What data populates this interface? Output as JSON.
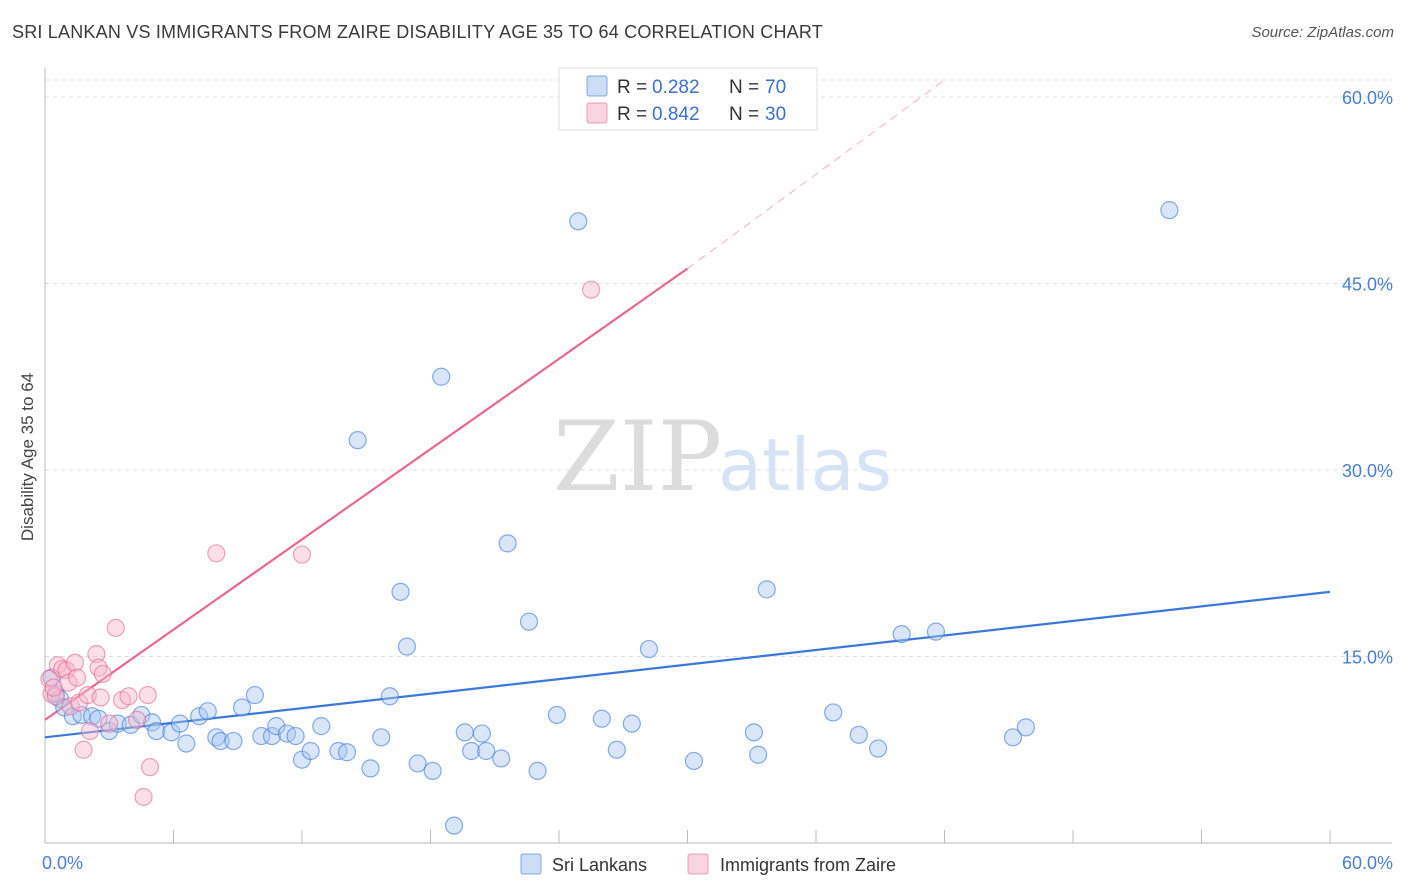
{
  "header": {
    "title": "SRI LANKAN VS IMMIGRANTS FROM ZAIRE DISABILITY AGE 35 TO 64 CORRELATION CHART",
    "source": "Source: ZipAtlas.com"
  },
  "colors": {
    "blue": "#3b78d8",
    "blue_fill": "#a9c8f0",
    "pink": "#e86890",
    "pink_fill": "#f7b8cc",
    "grid": "#dddddd"
  },
  "chart_data": {
    "type": "scatter",
    "title": "SRI LANKAN VS IMMIGRANTS FROM ZAIRE DISABILITY AGE 35 TO 64 CORRELATION CHART",
    "xlabel": "",
    "ylabel": "Disability Age 35 to 64",
    "xlim": [
      0,
      60
    ],
    "ylim": [
      0,
      60
    ],
    "x_tick_labels": [
      "0.0%",
      "60.0%"
    ],
    "y_ticks": [
      15,
      30,
      45,
      60
    ],
    "y_tick_labels": [
      "15.0%",
      "30.0%",
      "45.0%",
      "60.0%"
    ],
    "grid": true,
    "legend": [
      {
        "r_label": "R =",
        "r_value": "0.282",
        "n_label": "N =",
        "n_value": "70"
      },
      {
        "r_label": "R =",
        "r_value": "0.842",
        "n_label": "N =",
        "n_value": "30"
      }
    ],
    "series": [
      {
        "name": "Sri Lankans",
        "color": "#3b78d8",
        "trend": {
          "x0": 0,
          "y0": 8.5,
          "x1": 60,
          "y1": 20.2
        },
        "points": [
          [
            0.3,
            13.3
          ],
          [
            0.5,
            12.0
          ],
          [
            0.7,
            11.6
          ],
          [
            0.9,
            10.9
          ],
          [
            1.3,
            10.2
          ],
          [
            1.7,
            10.3
          ],
          [
            2.2,
            10.2
          ],
          [
            2.5,
            10.0
          ],
          [
            3.0,
            9.0
          ],
          [
            3.4,
            9.6
          ],
          [
            4.0,
            9.5
          ],
          [
            4.5,
            10.3
          ],
          [
            5.0,
            9.7
          ],
          [
            5.2,
            9.0
          ],
          [
            5.9,
            8.9
          ],
          [
            6.3,
            9.6
          ],
          [
            6.6,
            8.0
          ],
          [
            7.2,
            10.2
          ],
          [
            7.6,
            10.6
          ],
          [
            8.0,
            8.5
          ],
          [
            8.2,
            8.2
          ],
          [
            8.8,
            8.2
          ],
          [
            9.2,
            10.9
          ],
          [
            9.8,
            11.9
          ],
          [
            10.1,
            8.6
          ],
          [
            10.6,
            8.6
          ],
          [
            10.8,
            9.4
          ],
          [
            11.3,
            8.8
          ],
          [
            11.7,
            8.6
          ],
          [
            12.0,
            6.7
          ],
          [
            12.4,
            7.4
          ],
          [
            12.9,
            9.4
          ],
          [
            13.7,
            7.4
          ],
          [
            14.1,
            7.3
          ],
          [
            14.6,
            32.4
          ],
          [
            15.2,
            6.0
          ],
          [
            15.7,
            8.5
          ],
          [
            16.1,
            11.8
          ],
          [
            16.6,
            20.2
          ],
          [
            16.9,
            15.8
          ],
          [
            17.4,
            6.4
          ],
          [
            18.1,
            5.8
          ],
          [
            18.5,
            37.5
          ],
          [
            19.1,
            1.4
          ],
          [
            19.6,
            8.9
          ],
          [
            19.9,
            7.4
          ],
          [
            20.4,
            8.8
          ],
          [
            20.6,
            7.4
          ],
          [
            21.3,
            6.8
          ],
          [
            21.6,
            24.1
          ],
          [
            22.6,
            17.8
          ],
          [
            23.0,
            5.8
          ],
          [
            23.9,
            10.3
          ],
          [
            24.9,
            50.0
          ],
          [
            26.0,
            10.0
          ],
          [
            26.7,
            7.5
          ],
          [
            27.4,
            9.6
          ],
          [
            28.2,
            15.6
          ],
          [
            30.3,
            6.6
          ],
          [
            33.1,
            8.9
          ],
          [
            33.3,
            7.1
          ],
          [
            33.7,
            20.4
          ],
          [
            36.8,
            10.5
          ],
          [
            38.0,
            8.7
          ],
          [
            38.9,
            7.6
          ],
          [
            40.0,
            16.8
          ],
          [
            41.6,
            17.0
          ],
          [
            45.2,
            8.5
          ],
          [
            45.8,
            9.3
          ],
          [
            52.5,
            50.9
          ]
        ]
      },
      {
        "name": "Immigrants from Zaire",
        "color": "#e86890",
        "trend": {
          "x0": 0,
          "y0": 9.9,
          "x1": 30,
          "y1": 46.2,
          "dash_x1": 42,
          "dash_y1": 60.0
        },
        "points": [
          [
            0.2,
            13.2
          ],
          [
            0.3,
            12.0
          ],
          [
            0.5,
            11.8
          ],
          [
            0.6,
            14.3
          ],
          [
            0.8,
            14.0
          ],
          [
            1.0,
            13.9
          ],
          [
            1.1,
            12.9
          ],
          [
            1.2,
            11.0
          ],
          [
            1.4,
            14.5
          ],
          [
            1.6,
            11.3
          ],
          [
            1.8,
            7.5
          ],
          [
            2.0,
            11.9
          ],
          [
            2.1,
            9.0
          ],
          [
            2.4,
            15.2
          ],
          [
            2.5,
            14.1
          ],
          [
            2.6,
            11.7
          ],
          [
            2.7,
            13.6
          ],
          [
            3.0,
            9.6
          ],
          [
            3.3,
            17.3
          ],
          [
            3.6,
            11.5
          ],
          [
            3.9,
            11.8
          ],
          [
            4.3,
            9.9
          ],
          [
            4.6,
            3.7
          ],
          [
            4.8,
            11.9
          ],
          [
            4.9,
            6.1
          ],
          [
            8.0,
            23.3
          ],
          [
            12.0,
            23.2
          ],
          [
            25.5,
            44.5
          ],
          [
            0.4,
            12.5
          ],
          [
            1.5,
            13.3
          ]
        ]
      }
    ]
  }
}
